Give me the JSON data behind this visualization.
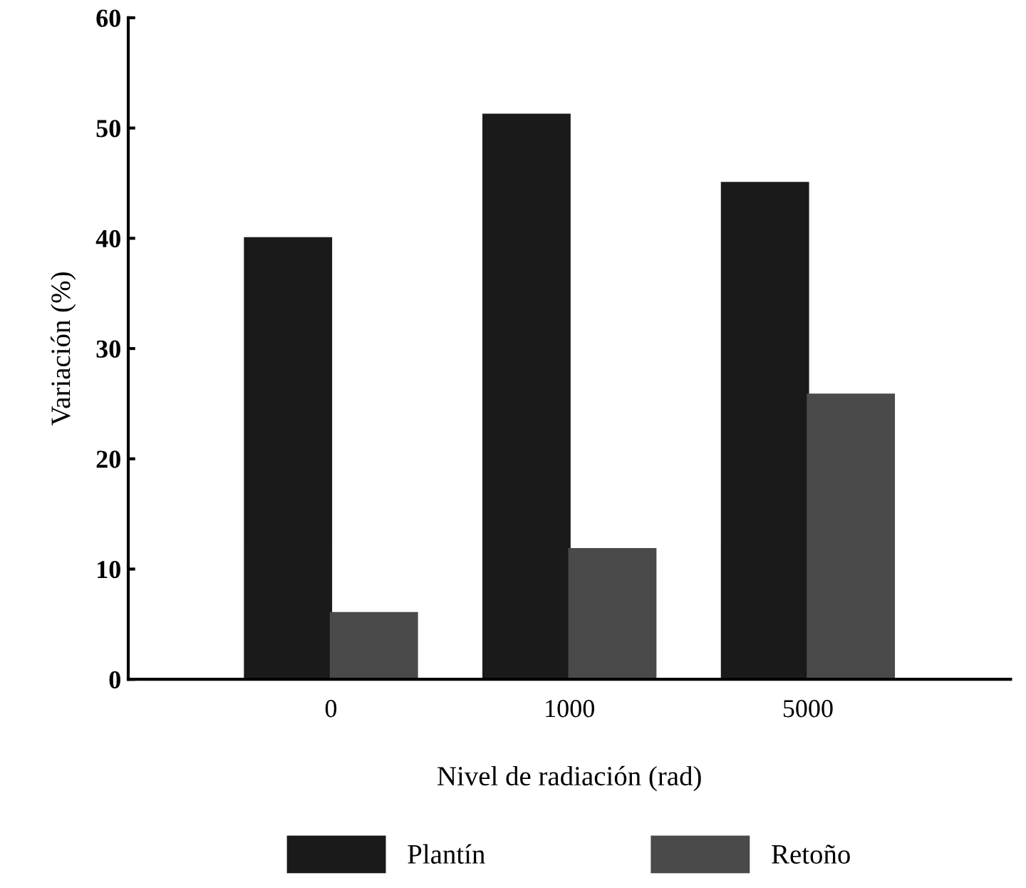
{
  "chart_data": {
    "type": "bar",
    "xlabel": "Nivel de radiación (rad)",
    "ylabel": "Variación (%)",
    "categories": [
      "0",
      "1000",
      "5000"
    ],
    "series": [
      {
        "name": "Plantín",
        "color": "#1a1a1a",
        "values": [
          40,
          51.2,
          45
        ]
      },
      {
        "name": "Retoño",
        "color": "#4a4a4a",
        "values": [
          6,
          11.8,
          25.8
        ]
      }
    ],
    "ylim": [
      0,
      60
    ],
    "yticks": [
      0,
      10,
      20,
      30,
      40,
      50,
      60
    ],
    "grid": false,
    "legend": "bottom"
  }
}
